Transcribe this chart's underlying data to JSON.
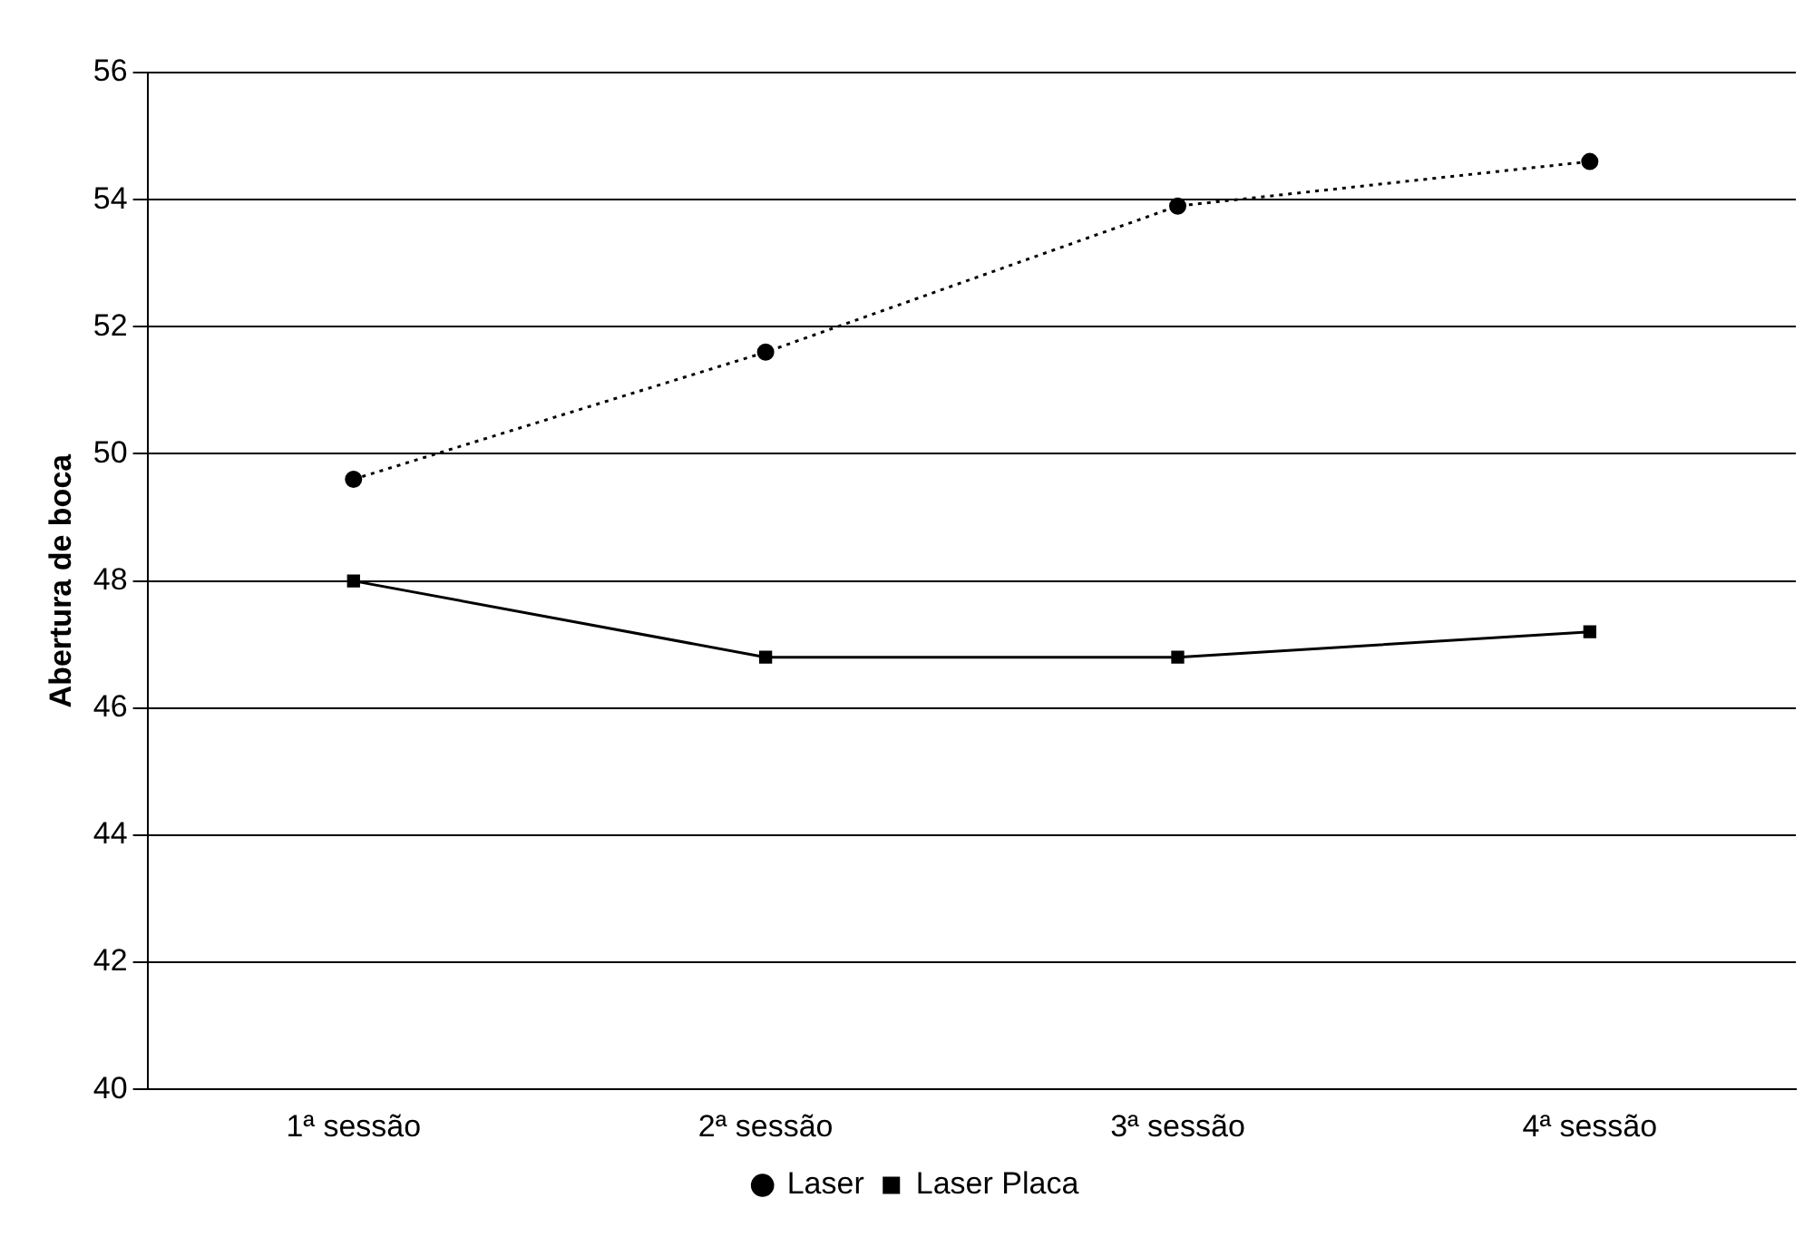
{
  "chart_data": {
    "type": "line",
    "ylabel": "Abertura de boca",
    "categories": [
      "1ª sessão",
      "2ª sessão",
      "3ª sessão",
      "4ª sessão"
    ],
    "ylim": [
      40,
      56
    ],
    "yticks": [
      40,
      42,
      44,
      46,
      48,
      50,
      52,
      54,
      56
    ],
    "grid": "y",
    "legend": "bottom",
    "series": [
      {
        "name": "Laser",
        "color": "#000000",
        "marker": "circle",
        "line_style": "dotted",
        "values": [
          49.6,
          51.6,
          53.9,
          54.6
        ]
      },
      {
        "name": "Laser Placa",
        "color": "#000000",
        "marker": "square",
        "line_style": "solid",
        "values": [
          48.0,
          46.8,
          46.8,
          47.2
        ]
      }
    ]
  }
}
